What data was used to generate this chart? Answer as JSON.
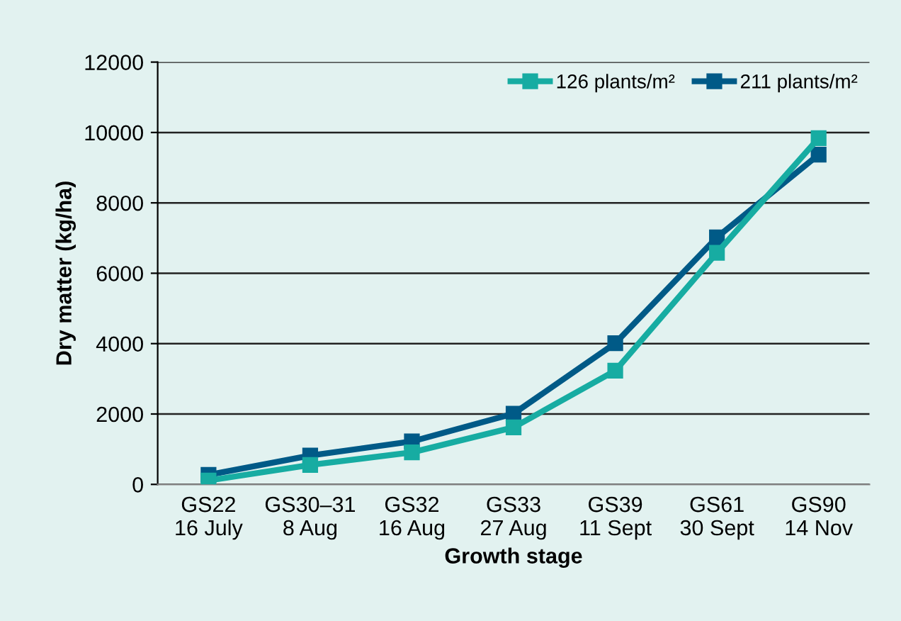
{
  "chart_data": {
    "type": "line",
    "xlabel": "Growth stage",
    "ylabel": "Dry matter (kg/ha)",
    "categories": [
      "GS22\n16 July",
      "GS30–31\n8 Aug",
      "GS32\n16 Aug",
      "GS33\n27 Aug",
      "GS39\n11 Sept",
      "GS61\n30 Sept",
      "GS90\n14 Nov"
    ],
    "series": [
      {
        "name": "126 plants/m²",
        "color": "#17aca2",
        "values": [
          110,
          550,
          910,
          1620,
          3230,
          6580,
          9840
        ]
      },
      {
        "name": "211 plants/m²",
        "color": "#005a87",
        "values": [
          270,
          820,
          1220,
          2010,
          4010,
          7020,
          9370
        ]
      }
    ],
    "ylim": [
      0,
      12000
    ],
    "yticks": [
      0,
      2000,
      4000,
      6000,
      8000,
      10000,
      12000
    ],
    "grid": "y",
    "legend": "top right",
    "marker": "square",
    "line_style": "solid"
  }
}
